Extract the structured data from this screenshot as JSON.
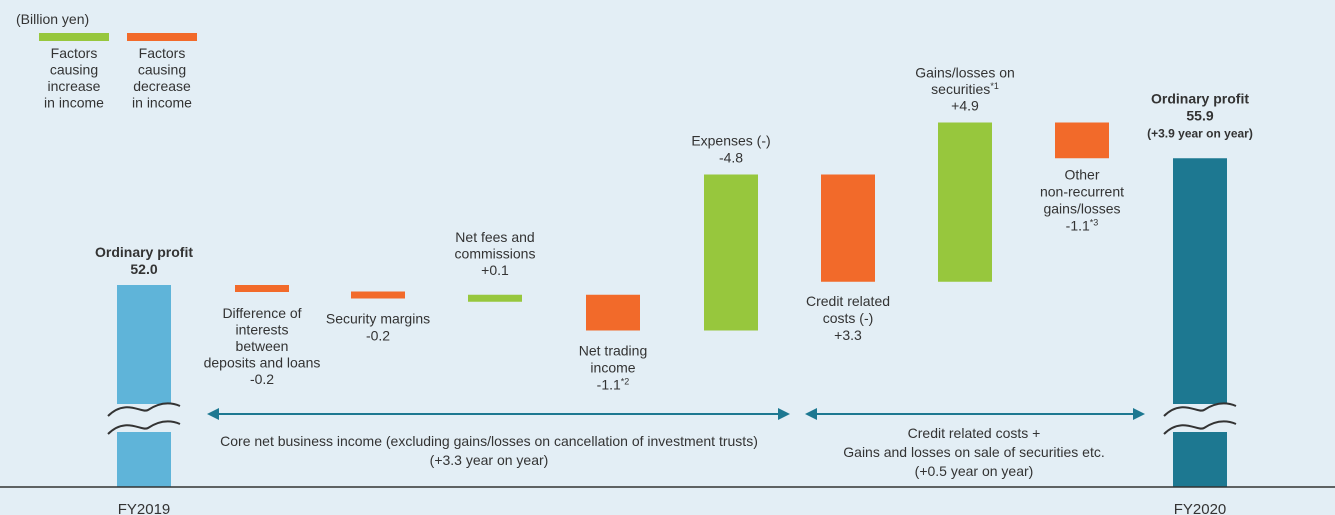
{
  "unit_label": "(Billion yen)",
  "legend": {
    "increase": {
      "lines": [
        "Factors",
        "causing",
        "increase",
        "in income"
      ],
      "color": "#97c73d"
    },
    "decrease": {
      "lines": [
        "Factors",
        "causing",
        "decrease",
        "in income"
      ],
      "color": "#f26a2a"
    }
  },
  "chart_data": {
    "type": "bar",
    "subtype": "waterfall",
    "unit": "Billion yen",
    "axis_break": true,
    "categories": [
      "FY2019",
      "Difference of interests between deposits and loans",
      "Security margins",
      "Net fees and commissions",
      "Net trading income",
      "Expenses (-)",
      "Credit related costs (-)",
      "Gains/losses on securities",
      "Other non-recurrent gains/losses",
      "FY2020"
    ],
    "bars": [
      {
        "kind": "total",
        "value": 52.0,
        "color": "#5fb4d9",
        "label_lines": [
          "Ordinary profit",
          "52.0"
        ],
        "bold": true,
        "axis_label": "FY2019"
      },
      {
        "kind": "decrease",
        "value": -0.2,
        "color": "#f26a2a",
        "label_lines": [
          "Difference of",
          "interests",
          "between",
          "deposits and loans",
          "-0.2"
        ]
      },
      {
        "kind": "decrease",
        "value": -0.2,
        "color": "#f26a2a",
        "label_lines": [
          "Security margins",
          "-0.2"
        ]
      },
      {
        "kind": "increase",
        "value": 0.1,
        "color": "#97c73d",
        "label_lines": [
          "Net fees and",
          "commissions",
          "+0.1"
        ]
      },
      {
        "kind": "decrease",
        "value": -1.1,
        "color": "#f26a2a",
        "label_lines": [
          "Net trading",
          "income",
          "-1.1*2"
        ]
      },
      {
        "kind": "increase",
        "value": 4.8,
        "color": "#97c73d",
        "label_lines": [
          "Expenses (-)",
          "-4.8"
        ]
      },
      {
        "kind": "decrease",
        "value": -3.3,
        "color": "#f26a2a",
        "label_lines": [
          "Credit related",
          "costs (-)",
          "+3.3"
        ]
      },
      {
        "kind": "increase",
        "value": 4.9,
        "color": "#97c73d",
        "label_lines": [
          "Gains/losses on",
          "securities*1",
          "+4.9"
        ]
      },
      {
        "kind": "decrease",
        "value": -1.1,
        "color": "#f26a2a",
        "label_lines": [
          "Other",
          "non-recurrent",
          "gains/losses",
          "-1.1*3"
        ]
      },
      {
        "kind": "total",
        "value": 55.9,
        "color": "#1d7891",
        "label_lines": [
          "Ordinary profit",
          "55.9",
          "(+3.9 year on year)"
        ],
        "bold": true,
        "axis_label": "FY2020"
      }
    ],
    "brackets": [
      {
        "from_bar": 1,
        "to_bar": 5,
        "label_lines": [
          "Core net business income (excluding gains/losses on cancellation of investment trusts)",
          "(+3.3 year on year)"
        ]
      },
      {
        "from_bar": 6,
        "to_bar": 8,
        "label_lines": [
          "Credit related costs +",
          "Gains and losses on sale of securities etc.",
          "(+0.5 year on year)"
        ]
      }
    ],
    "arrow_color": "#1d7891"
  }
}
